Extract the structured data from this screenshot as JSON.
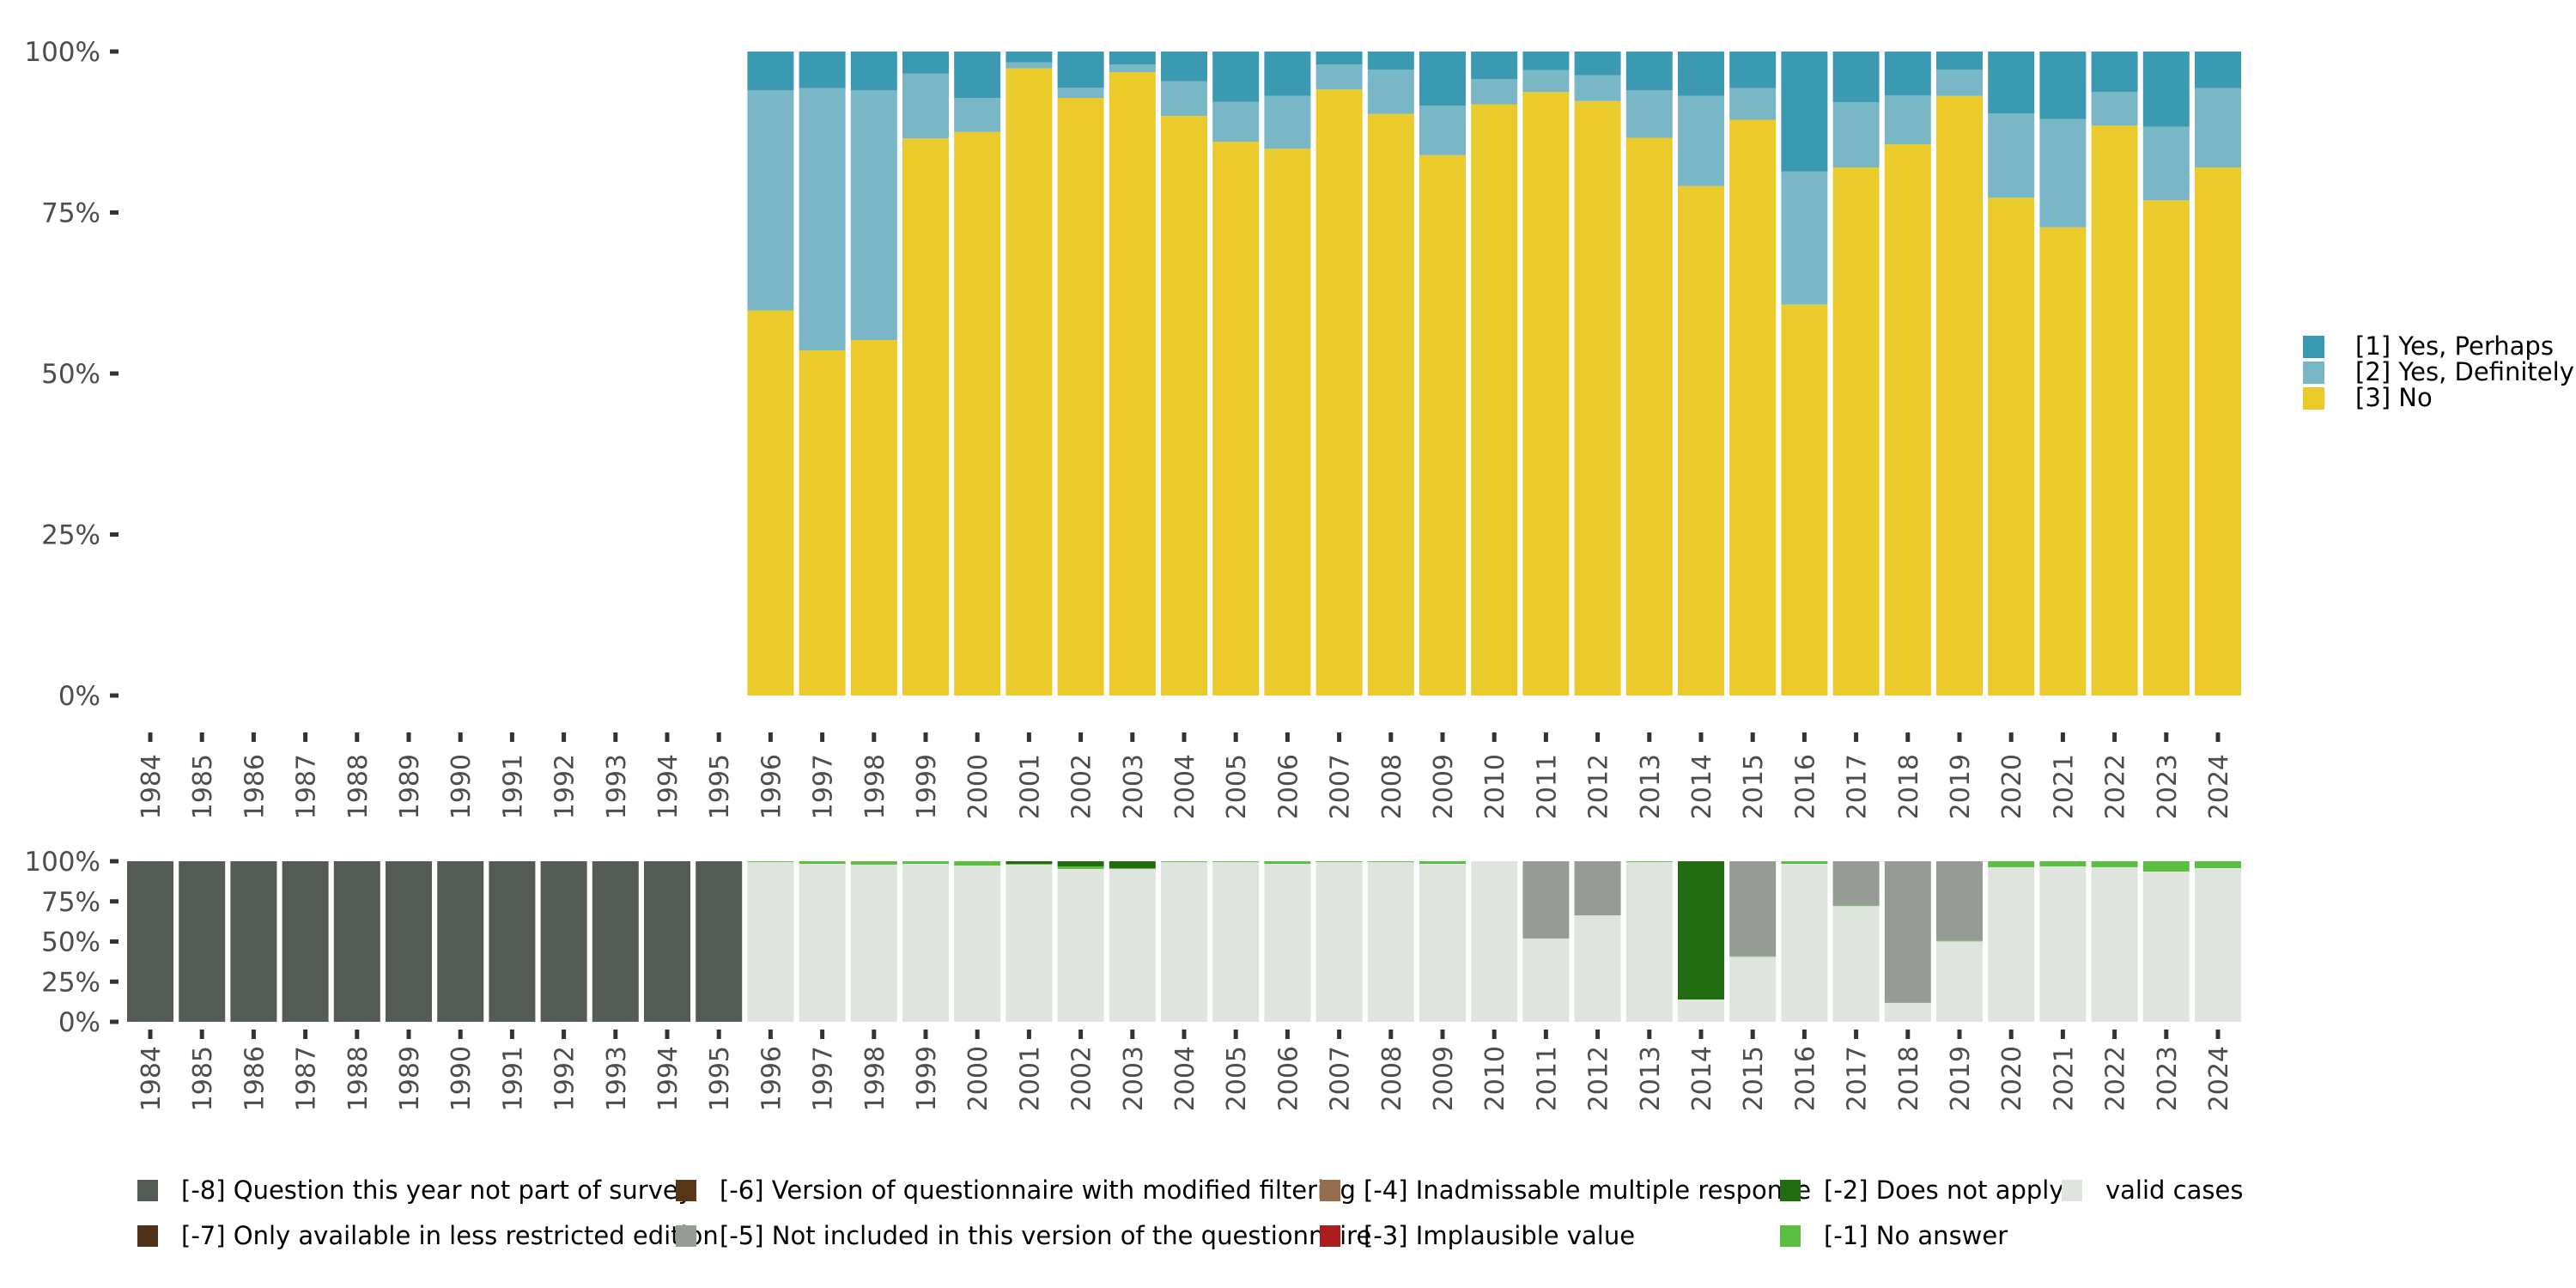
{
  "chart_data": [
    {
      "id": "main",
      "type": "bar",
      "stacked": true,
      "normalized": true,
      "title": "",
      "xlabel": "",
      "ylabel": "",
      "ylim": [
        0,
        1
      ],
      "yticks": [
        0,
        0.25,
        0.5,
        0.75,
        1
      ],
      "ytick_labels": [
        "0%",
        "25%",
        "50%",
        "75%",
        "100%"
      ],
      "grid": false,
      "legend_position": "right",
      "categories": [
        "1984",
        "1985",
        "1986",
        "1987",
        "1988",
        "1989",
        "1990",
        "1991",
        "1992",
        "1993",
        "1994",
        "1995",
        "1996",
        "1997",
        "1998",
        "1999",
        "2000",
        "2001",
        "2002",
        "2003",
        "2004",
        "2005",
        "2006",
        "2007",
        "2008",
        "2009",
        "2010",
        "2011",
        "2012",
        "2013",
        "2014",
        "2015",
        "2016",
        "2017",
        "2018",
        "2019",
        "2020",
        "2021",
        "2022",
        "2023",
        "2024"
      ],
      "series": [
        {
          "name": "[3] No",
          "color": "#eacb2b",
          "values": [
            null,
            null,
            null,
            null,
            null,
            null,
            null,
            null,
            null,
            null,
            null,
            null,
            59.8,
            53.6,
            55.2,
            86.5,
            87.5,
            97.4,
            92.8,
            96.8,
            90.0,
            86.0,
            84.9,
            94.1,
            90.3,
            83.9,
            91.8,
            93.7,
            92.3,
            86.6,
            79.1,
            89.4,
            60.7,
            82.0,
            85.6,
            93.1,
            77.3,
            72.7,
            88.5,
            76.9,
            82.0
          ]
        },
        {
          "name": "[2] Yes, Definitely",
          "color": "#7ab7c6",
          "values": [
            null,
            null,
            null,
            null,
            null,
            null,
            null,
            null,
            null,
            null,
            null,
            null,
            34.2,
            40.7,
            38.8,
            10.1,
            5.3,
            0.9,
            1.6,
            1.2,
            5.4,
            6.2,
            8.2,
            3.9,
            6.9,
            7.7,
            3.9,
            3.4,
            4.0,
            7.4,
            14.0,
            4.9,
            20.7,
            10.1,
            7.6,
            4.1,
            13.1,
            16.8,
            5.2,
            11.4,
            12.3
          ]
        },
        {
          "name": "[1] Yes, Perhaps",
          "color": "#3b99b1",
          "values": [
            null,
            null,
            null,
            null,
            null,
            null,
            null,
            null,
            null,
            null,
            null,
            null,
            6.0,
            5.7,
            6.0,
            3.4,
            7.2,
            1.7,
            5.6,
            2.0,
            4.6,
            7.8,
            6.9,
            2.0,
            2.8,
            8.4,
            4.3,
            2.9,
            3.7,
            6.0,
            6.9,
            5.7,
            18.6,
            7.9,
            6.8,
            2.8,
            9.6,
            10.5,
            6.3,
            11.7,
            5.7
          ]
        }
      ],
      "legend": [
        {
          "label": "[1] Yes, Perhaps",
          "color": "#3b99b1"
        },
        {
          "label": "[2] Yes, Definitely",
          "color": "#7ab7c6"
        },
        {
          "label": "[3] No",
          "color": "#eacb2b"
        }
      ]
    },
    {
      "id": "missing",
      "type": "bar",
      "stacked": true,
      "normalized": true,
      "title": "",
      "xlabel": "",
      "ylabel": "",
      "ylim": [
        0,
        1
      ],
      "yticks": [
        0,
        0.25,
        0.5,
        0.75,
        1
      ],
      "ytick_labels": [
        "0%",
        "25%",
        "50%",
        "75%",
        "100%"
      ],
      "grid": false,
      "legend_position": "bottom",
      "categories": [
        "1984",
        "1985",
        "1986",
        "1987",
        "1988",
        "1989",
        "1990",
        "1991",
        "1992",
        "1993",
        "1994",
        "1995",
        "1996",
        "1997",
        "1998",
        "1999",
        "2000",
        "2001",
        "2002",
        "2003",
        "2004",
        "2005",
        "2006",
        "2007",
        "2008",
        "2009",
        "2010",
        "2011",
        "2012",
        "2013",
        "2014",
        "2015",
        "2016",
        "2017",
        "2018",
        "2019",
        "2020",
        "2021",
        "2022",
        "2023",
        "2024"
      ],
      "series": [
        {
          "name": "valid cases",
          "color": "#e0e4df",
          "values": [
            0,
            0,
            0,
            0,
            0,
            0,
            0,
            0,
            0,
            0,
            0,
            0,
            99.5,
            98.4,
            97.9,
            98.4,
            97.3,
            97.9,
            95.2,
            95.2,
            99.5,
            99.5,
            98.4,
            99.5,
            99.5,
            98.4,
            100,
            51.9,
            66.3,
            99.5,
            13.9,
            40.5,
            98.4,
            72.1,
            11.8,
            50.1,
            96.3,
            96.8,
            96.3,
            93.6,
            95.7
          ]
        },
        {
          "name": "[-1] No answer",
          "color": "#5abf41",
          "values": [
            0,
            0,
            0,
            0,
            0,
            0,
            0,
            0,
            0,
            0,
            0,
            0,
            0.5,
            1.6,
            2.1,
            1.6,
            2.7,
            0.5,
            1.6,
            0.5,
            0.5,
            0.5,
            1.6,
            0.5,
            0.5,
            1.6,
            0,
            0,
            0,
            0.5,
            0,
            0.3,
            1.6,
            0.3,
            0,
            0.3,
            3.7,
            3.2,
            3.7,
            6.4,
            4.3
          ]
        },
        {
          "name": "[-2] Does not apply",
          "color": "#216c11",
          "values": [
            0,
            0,
            0,
            0,
            0,
            0,
            0,
            0,
            0,
            0,
            0,
            0,
            0,
            0,
            0,
            0,
            0,
            1.6,
            3.2,
            4.3,
            0,
            0,
            0,
            0,
            0,
            0,
            0,
            0,
            0,
            0,
            86.1,
            0,
            0,
            0,
            0,
            0,
            0,
            0,
            0,
            0,
            0
          ]
        },
        {
          "name": "[-5] Not included in this version of the questionnaire",
          "color": "#979b95",
          "values": [
            0,
            0,
            0,
            0,
            0,
            0,
            0,
            0,
            0,
            0,
            0,
            0,
            0,
            0,
            0,
            0,
            0,
            0,
            0,
            0,
            0,
            0,
            0,
            0,
            0,
            0,
            0,
            48.1,
            33.7,
            0,
            0,
            59.2,
            0,
            27.6,
            88.2,
            49.6,
            0,
            0,
            0,
            0,
            0
          ]
        },
        {
          "name": "[-8] Question this year not part of survey",
          "color": "#545b55",
          "values": [
            100,
            100,
            100,
            100,
            100,
            100,
            100,
            100,
            100,
            100,
            100,
            100,
            0,
            0,
            0,
            0,
            0,
            0,
            0,
            0,
            0,
            0,
            0,
            0,
            0,
            0,
            0,
            0,
            0,
            0,
            0,
            0,
            0,
            0,
            0,
            0,
            0,
            0,
            0,
            0,
            0
          ]
        }
      ],
      "legend": [
        {
          "label": "[-8] Question this year not part of survey",
          "color": "#545b55"
        },
        {
          "label": "[-6] Version of questionnaire with modified filtering",
          "color": "#573516"
        },
        {
          "label": "[-4] Inadmissable multiple response",
          "color": "#936d4e"
        },
        {
          "label": "[-2] Does not apply",
          "color": "#216c11"
        },
        {
          "label": "valid cases",
          "color": "#e0e4df"
        },
        {
          "label": "[-7] Only available in less restricted edition",
          "color": "#4f3219"
        },
        {
          "label": "[-5] Not included in this version of the questionnaire",
          "color": "#979b95"
        },
        {
          "label": "[-3] Implausible value",
          "color": "#ae1d1d"
        },
        {
          "label": "[-1] No answer",
          "color": "#5abf41"
        }
      ]
    }
  ]
}
